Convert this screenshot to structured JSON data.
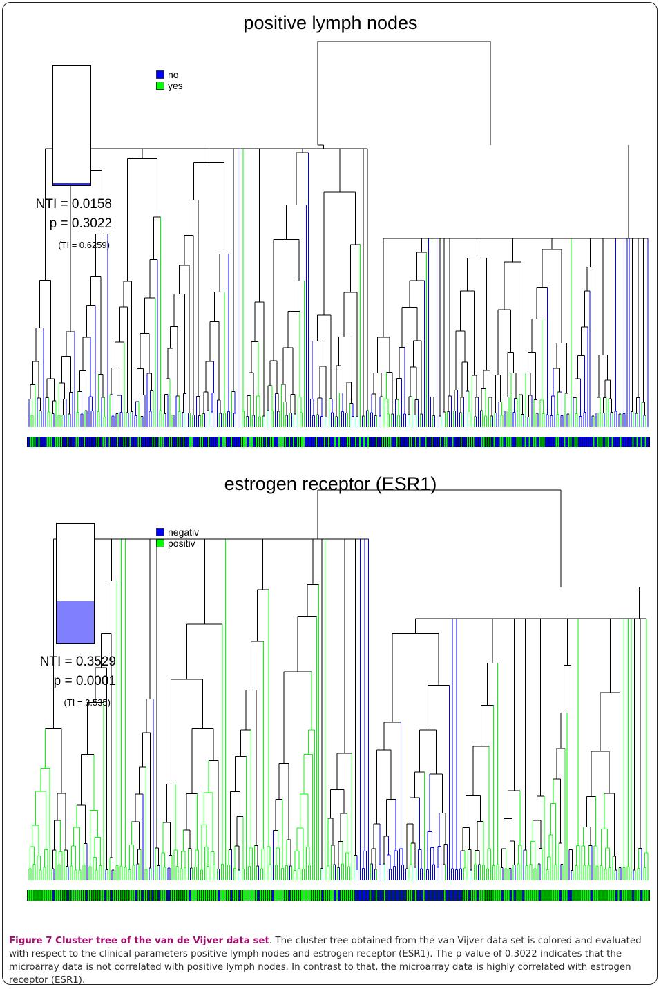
{
  "panels": [
    {
      "title": "positive lymph nodes",
      "legend": [
        {
          "label": "no",
          "color": "#0000ff"
        },
        {
          "label": "yes",
          "color": "#00ff00"
        }
      ],
      "stats": {
        "nti": "NTI = 0.0158",
        "p": "p = 0.3022",
        "ti": "(TI = 0.6259)",
        "bar_fill_fraction": 0.0158,
        "bar_fill_color": "#3333cc"
      }
    },
    {
      "title": "estrogen receptor (ESR1)",
      "legend": [
        {
          "label": "negativ",
          "color": "#0000ff"
        },
        {
          "label": "positiv",
          "color": "#00ff00"
        }
      ],
      "stats": {
        "nti": "NTI = 0.3529",
        "p": "p = 0.0001",
        "ti": "(TI = 3.535)",
        "bar_fill_fraction": 0.3529,
        "bar_fill_color": "#8080ff"
      }
    }
  ],
  "caption": {
    "lead": "Figure 7 Cluster tree of the van de Vijver data set",
    "body": ". The cluster tree obtained from the van Vijver data set is colored and evaluated with respect to the clinical parameters positive lymph nodes and estrogen receptor (ESR1). The p-value of 0.3022 indicates that the microarray data is not correlated with positive lymph nodes. In contrast to that, the microarray data is highly correlated with estrogen receptor (ESR1)."
  },
  "colors": {
    "class_a": "#0000ff",
    "class_b": "#00ff00",
    "internal": "#000000"
  }
}
